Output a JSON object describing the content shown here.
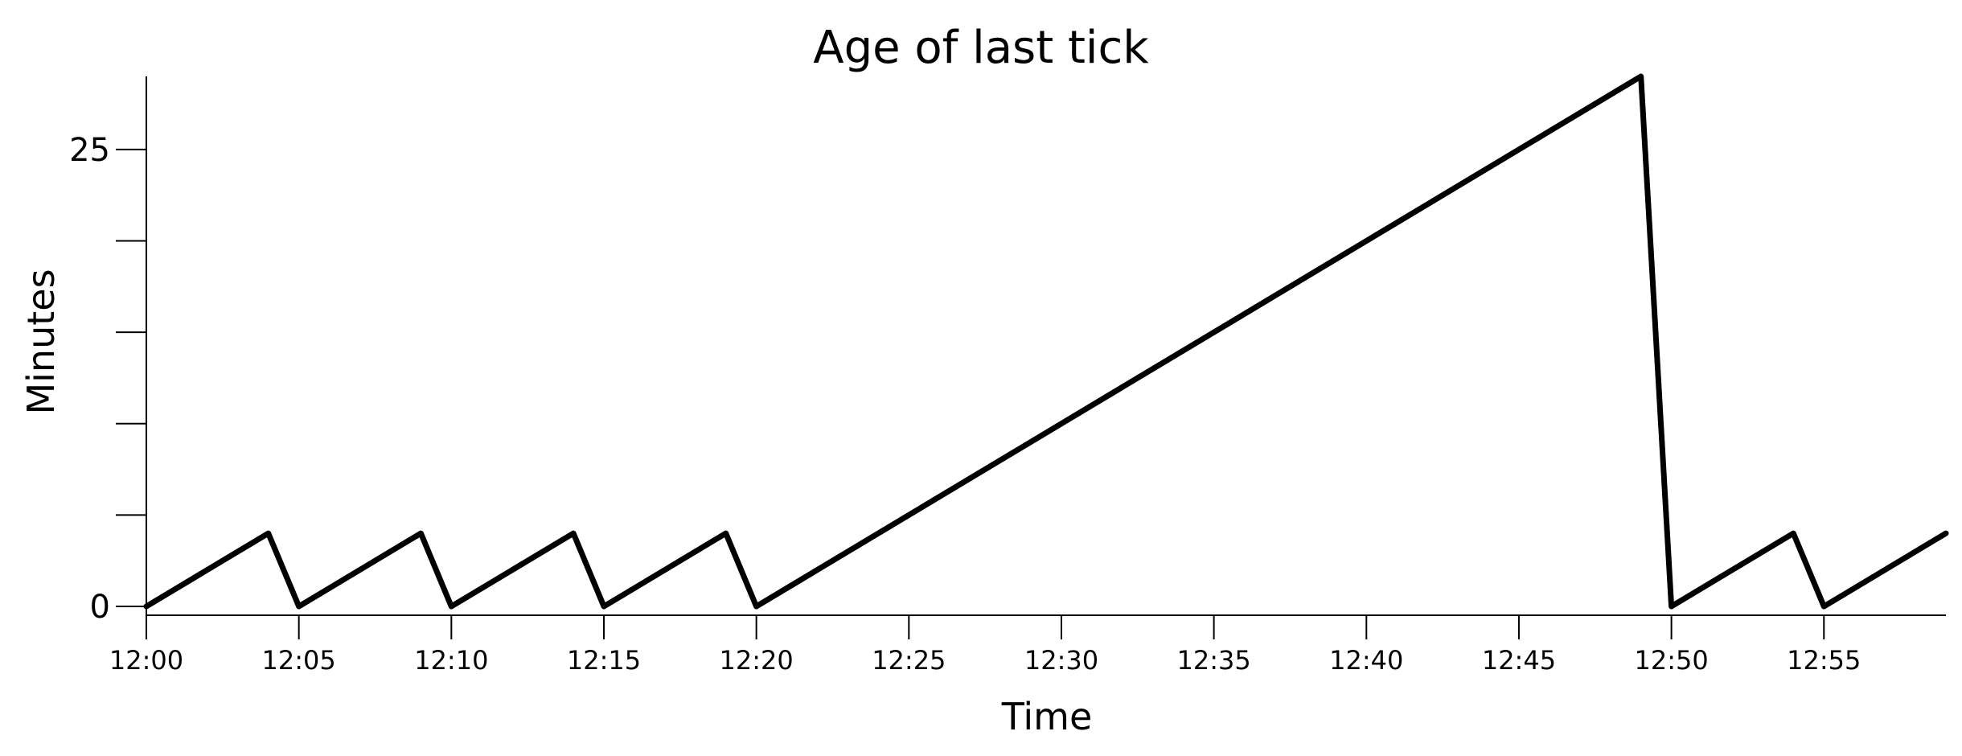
{
  "chart_data": {
    "type": "line",
    "title": "Age of last tick",
    "xlabel": "Time",
    "ylabel": "Minutes",
    "x_tick_labels": [
      "12:00",
      "12:05",
      "12:10",
      "12:15",
      "12:20",
      "12:25",
      "12:30",
      "12:35",
      "12:40",
      "12:45",
      "12:50",
      "12:55"
    ],
    "y_tick_labels": [
      "0",
      "25"
    ],
    "y_minor_ticks": [
      0,
      5,
      10,
      15,
      20,
      25
    ],
    "xlim": [
      "12:00",
      "12:59"
    ],
    "ylim": [
      0,
      29
    ],
    "grid": false,
    "series": [
      {
        "x": [
          "12:00",
          "12:04",
          "12:05",
          "12:09",
          "12:10",
          "12:14",
          "12:15",
          "12:19",
          "12:20",
          "12:49",
          "12:50",
          "12:54",
          "12:55",
          "12:59"
        ],
        "y": [
          0,
          4,
          0,
          4,
          0,
          4,
          0,
          4,
          0,
          29,
          0,
          4,
          0,
          4
        ],
        "color": "#000000"
      }
    ]
  }
}
